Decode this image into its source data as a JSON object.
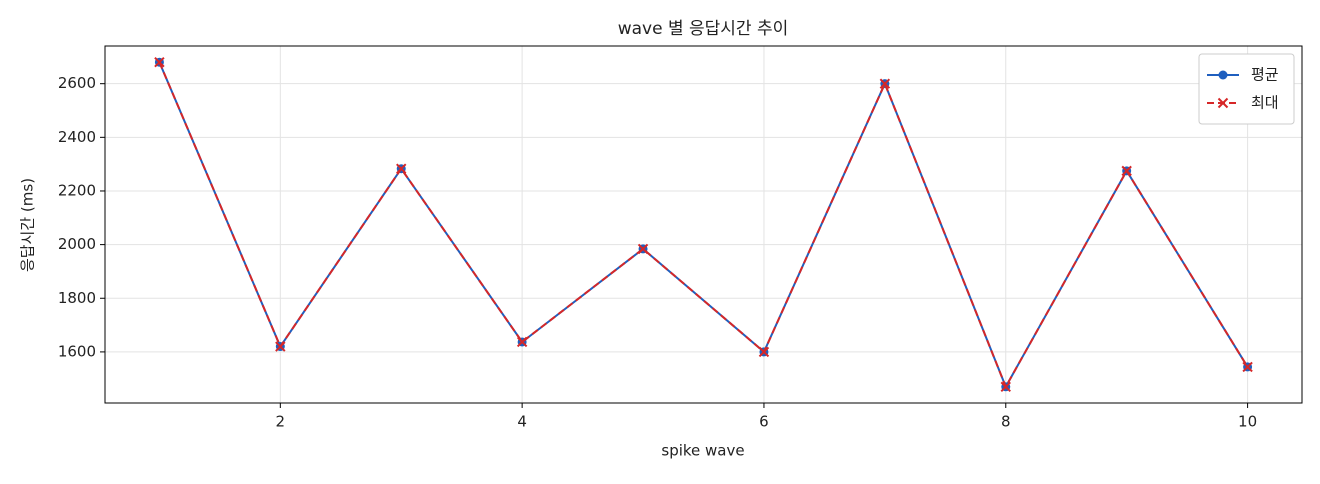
{
  "chart_data": {
    "type": "line",
    "title": "wave 별 응답시간 추이",
    "xlabel": "spike wave",
    "ylabel": "응답시간 (ms)",
    "x": [
      1,
      2,
      3,
      4,
      5,
      6,
      7,
      8,
      9,
      10
    ],
    "series": [
      {
        "name": "평균",
        "color": "#1f5fbf",
        "marker": "o",
        "linestyle": "solid",
        "values": [
          2680,
          1620,
          2283,
          1637,
          1984,
          1600,
          2600,
          1470,
          2275,
          1544
        ]
      },
      {
        "name": "최대",
        "color": "#d62728",
        "marker": "x",
        "linestyle": "dashed",
        "values": [
          2680,
          1620,
          2283,
          1637,
          1984,
          1600,
          2600,
          1470,
          2275,
          1544
        ]
      }
    ],
    "xlim": [
      0.55,
      10.45
    ],
    "ylim": [
      1409.5,
      2740.5
    ],
    "xticks": [
      2,
      4,
      6,
      8,
      10
    ],
    "yticks": [
      1600,
      1800,
      2000,
      2200,
      2400,
      2600
    ],
    "grid": true,
    "legend": "upper right"
  }
}
